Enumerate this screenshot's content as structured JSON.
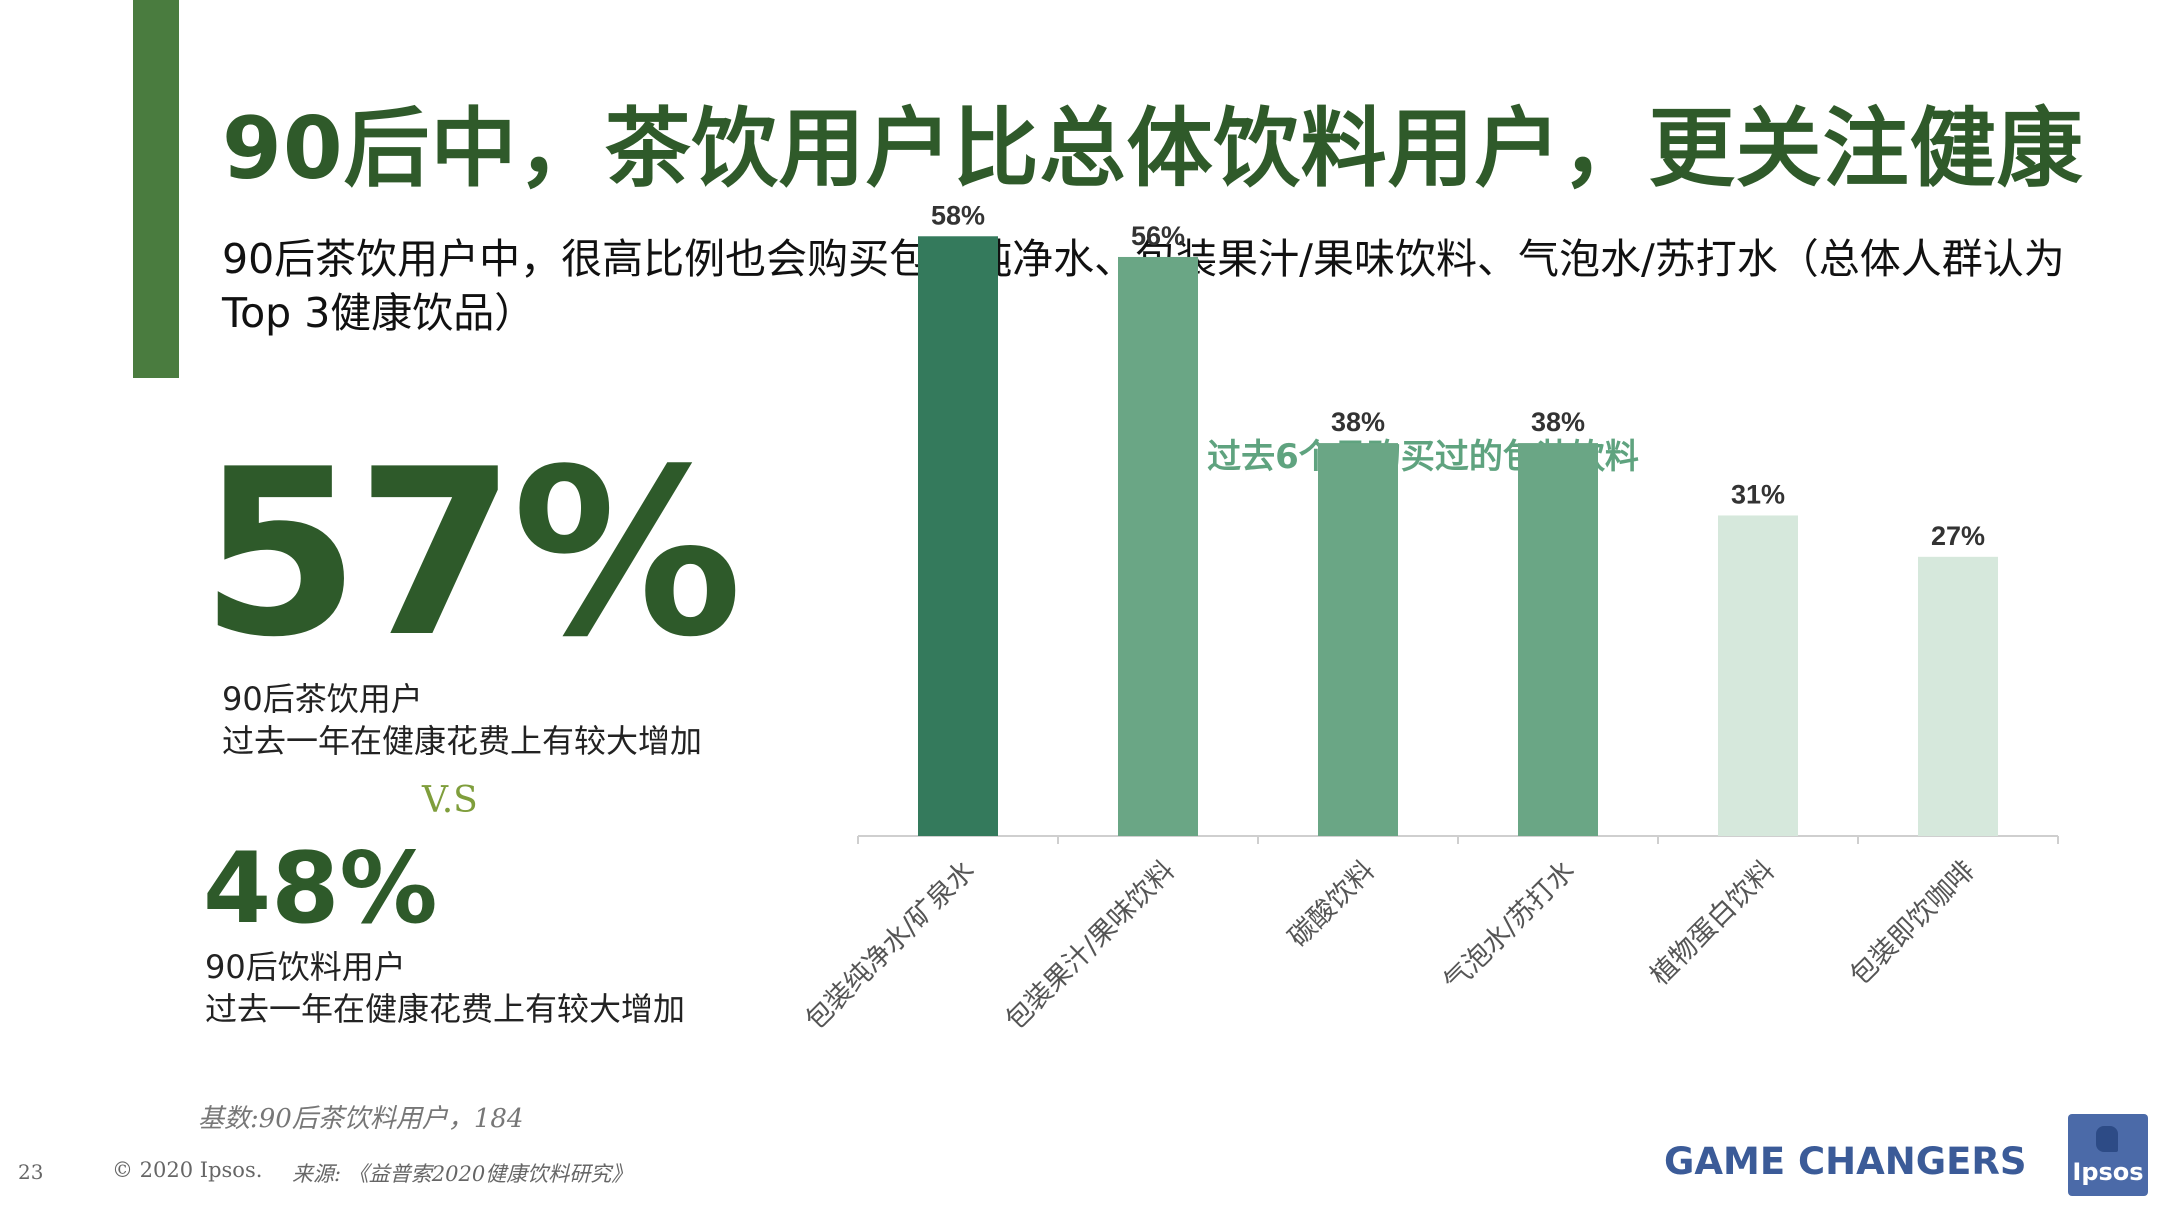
{
  "page": {
    "title": "90后中，茶饮用户比总体饮料用户，更关注健康",
    "subtitle": "90后茶饮用户中，很高比例也会购买包装纯净水、包装果汁/果味饮料、气泡水/苏打水（总体人群认为Top 3健康饮品）",
    "stat1": {
      "value": "57%",
      "line1": "90后茶饮用户",
      "line2": "过去一年在健康花费上有较大增加"
    },
    "vs": "V.S",
    "stat2": {
      "value": "48%",
      "line1": "90后饮料用户",
      "line2": "过去一年在健康花费上有较大增加"
    },
    "base_note": "基数:90后茶饮料用户，184",
    "page_number": "23",
    "copyright": "© 2020 Ipsos.",
    "source": "来源: 《益普索2020健康饮料研究》",
    "brand_tagline": "GAME CHANGERS",
    "logo_text": "Ipsos"
  },
  "chart_data": {
    "type": "bar",
    "title": "过去6个月购买过的包装饮料",
    "categories": [
      "包装纯净水/矿泉水",
      "包装果汁/果味饮料",
      "碳酸饮料",
      "气泡水/苏打水",
      "植物蛋白饮料",
      "包装即饮咖啡"
    ],
    "values": [
      58,
      56,
      38,
      38,
      31,
      27
    ],
    "value_labels": [
      "58%",
      "56%",
      "38%",
      "38%",
      "31%",
      "27%"
    ],
    "colors": [
      "#347a5c",
      "#6aa685",
      "#6aa685",
      "#6aa685",
      "#d6e8dc",
      "#d6e8dc"
    ],
    "title_color": "#5fa37f",
    "ylim": [
      0,
      100
    ],
    "grid": false,
    "xlabel": "",
    "ylabel": ""
  }
}
